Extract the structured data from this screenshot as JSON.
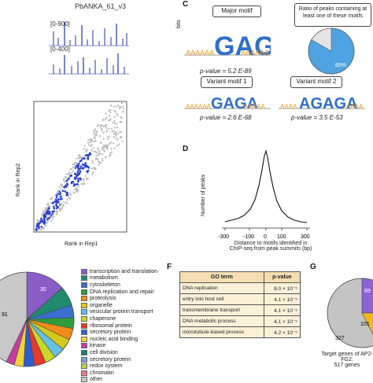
{
  "panel_a": {
    "title": "PbANKA_61_v3",
    "track1_range": "[0-900]",
    "track2_range": "[0-400]"
  },
  "panel_b": {
    "xlabel": "Rank in Rep1",
    "ylabel": "Rank in Rep2",
    "colors": {
      "peaks": "#2b3fd1",
      "others": "#b8b8b8"
    }
  },
  "panel_c": {
    "letter": "C",
    "major_title": "Major motif",
    "major_pvalue": "p-value = 5.2 E-89",
    "ratio_title": "Ratio of peaks containing at least one of these motifs",
    "ratio_pct": "85%",
    "variant1_title": "Variant motif 1",
    "variant1_pvalue": "p-value = 2.6 E-68",
    "variant2_title": "Variant motif 2",
    "variant2_pvalue": "p-value = 3.5 E-53",
    "bits_label": "bits",
    "logo_major": "GAGA",
    "logo_v1": "GAGA",
    "logo_v2": "AGAGA",
    "colors": {
      "pie_fill": "#4ea3e0",
      "pie_rest": "#e4e4e4"
    }
  },
  "panel_d": {
    "letter": "D",
    "xlabel_line1": "Distance to motifs identified in",
    "xlabel_line2": "ChIP-seq from peak summits (bp)",
    "ylabel": "Number of peaks"
  },
  "panel_e": {
    "legend": [
      {
        "label": "transcription and translation",
        "color": "#8a5cc6"
      },
      {
        "label": "metabolism",
        "color": "#1f8a6e"
      },
      {
        "label": "cytoskeleton",
        "color": "#3a6fcf"
      },
      {
        "label": "DNA replication and repair",
        "color": "#2e9c3a"
      },
      {
        "label": "proteolysis",
        "color": "#f08c1c"
      },
      {
        "label": "organelle",
        "color": "#d8c81e"
      },
      {
        "label": "vesicular protein transport",
        "color": "#63c2e6"
      },
      {
        "label": "chaperone",
        "color": "#c9d926"
      },
      {
        "label": "ribosomal protein",
        "color": "#e43a2b"
      },
      {
        "label": "secretory protein",
        "color": "#2b5fcf"
      },
      {
        "label": "nucleic acid binding",
        "color": "#f1d23a"
      },
      {
        "label": "kinase",
        "color": "#c23fa0"
      },
      {
        "label": "cell division",
        "color": "#17806f"
      },
      {
        "label": "secretory protein",
        "color": "#7e9bd3"
      },
      {
        "label": "redox system",
        "color": "#b0d64a"
      },
      {
        "label": "chromatin",
        "color": "#ef7a86"
      },
      {
        "label": "other",
        "color": "#c8c8c8"
      }
    ],
    "pie_labels": {
      "other": "91",
      "transcription": "30"
    }
  },
  "panel_f": {
    "letter": "F",
    "header_term": "GO term",
    "header_pvalue": "p-value",
    "rows": [
      {
        "term": "DNA replication",
        "pvalue": "8.0 × 10⁻⁵"
      },
      {
        "term": "entry into host cell",
        "pvalue": "4.1 × 10⁻⁵"
      },
      {
        "term": "transmembrane transport",
        "pvalue": "4.1 × 10⁻⁵"
      },
      {
        "term": "DNA metabolic process",
        "pvalue": "4.1 × 10⁻⁵"
      },
      {
        "term": "microtubule-based process",
        "pvalue": "4.2 × 10⁻⁵"
      }
    ]
  },
  "panel_g": {
    "letter": "G",
    "values": {
      "purple": "89",
      "yellow": "101",
      "grey": "327"
    },
    "caption_line1": "Target genes of AP2-FG2:",
    "caption_line2": "517 genes",
    "colors": {
      "purple": "#8c63d6",
      "yellow": "#f2b91b",
      "grey": "#c4c4c4"
    }
  }
}
